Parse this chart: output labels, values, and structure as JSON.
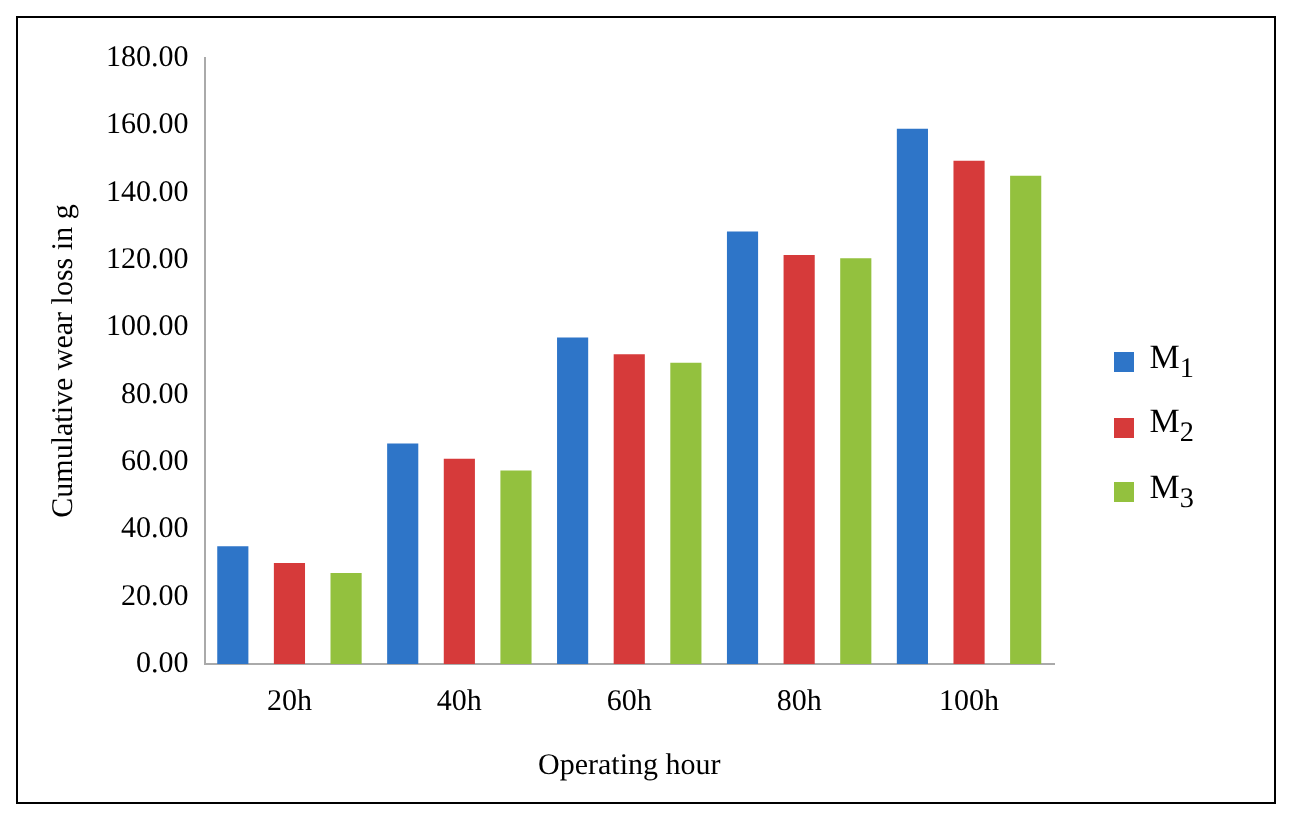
{
  "chart_data": {
    "type": "bar",
    "xlabel": "Operating hour",
    "ylabel": "Cumulative wear loss in g",
    "categories": [
      "20h",
      "40h",
      "60h",
      "80h",
      "100h"
    ],
    "series": [
      {
        "name": "M$_{1}$",
        "color": "#2e75c8",
        "values": [
          35,
          65.5,
          97,
          128.5,
          159
        ]
      },
      {
        "name": "M$_{2}$",
        "color": "#d63a3a",
        "values": [
          30,
          61,
          92,
          121.5,
          149.5
        ]
      },
      {
        "name": "M$_{3}$",
        "color": "#93c13e",
        "values": [
          27,
          57.5,
          89.5,
          120.5,
          145
        ]
      }
    ],
    "ylim": [
      0,
      180
    ],
    "yticks": [
      {
        "value": 0,
        "label": "0.00"
      },
      {
        "value": 20,
        "label": "20.00"
      },
      {
        "value": 40,
        "label": "40.00"
      },
      {
        "value": 60,
        "label": "60.00"
      },
      {
        "value": 80,
        "label": "80.00"
      },
      {
        "value": 100,
        "label": "100.00"
      },
      {
        "value": 120,
        "label": "120.00"
      },
      {
        "value": 140,
        "label": "140.00"
      },
      {
        "value": 160,
        "label": "160.00"
      },
      {
        "value": 180,
        "label": "180.00"
      }
    ],
    "grid": false,
    "legend": "right"
  }
}
